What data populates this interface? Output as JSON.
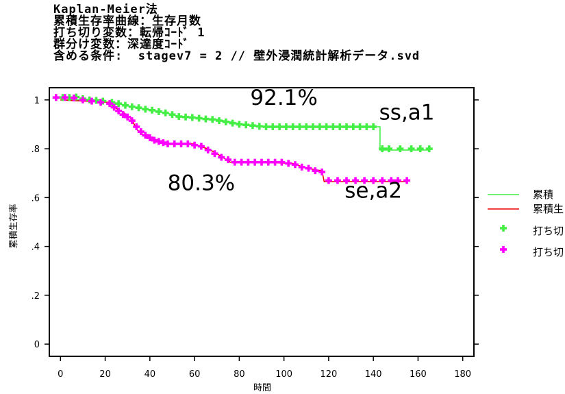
{
  "header": {
    "lines": [
      "Kaplan-Meier法",
      "累積生存率曲線：生存月数",
      "打ち切り変数：転帰ｺｰﾄﾞ 1",
      "群分け変数：深達度ｺｰﾄﾞ",
      "含める条件:  stagev7 = 2 // 壁外浸潤統計解析データ.svd"
    ]
  },
  "chart_data": {
    "type": "line",
    "xlabel": "時間",
    "ylabel": "累積生存率",
    "xlim": [
      -5,
      185
    ],
    "ylim": [
      -0.05,
      1.05
    ],
    "xticks": [
      0,
      20,
      40,
      60,
      80,
      100,
      120,
      140,
      160,
      180
    ],
    "yticks": [
      0,
      0.2,
      0.4,
      0.6,
      0.8,
      1
    ],
    "ytick_labels": [
      "0",
      ".2",
      ".4",
      ".6",
      ".8",
      "1"
    ],
    "grid": false,
    "series": [
      {
        "name": "累積",
        "color": "#44ee44",
        "curve": [
          [
            0,
            1.0
          ],
          [
            8,
            1.0
          ],
          [
            14,
            0.995
          ],
          [
            22,
            0.99
          ],
          [
            26,
            0.985
          ],
          [
            30,
            0.975
          ],
          [
            36,
            0.965
          ],
          [
            42,
            0.955
          ],
          [
            48,
            0.945
          ],
          [
            52,
            0.935
          ],
          [
            54,
            0.93
          ],
          [
            62,
            0.925
          ],
          [
            70,
            0.92
          ],
          [
            76,
            0.91
          ],
          [
            82,
            0.9
          ],
          [
            86,
            0.895
          ],
          [
            92,
            0.89
          ],
          [
            143,
            0.89
          ],
          [
            143,
            0.795
          ],
          [
            165,
            0.795
          ]
        ],
        "censored": [
          [
            -2,
            1.01
          ],
          [
            1,
            1.01
          ],
          [
            4,
            1.01
          ],
          [
            7,
            1.012
          ],
          [
            10,
            1.005
          ],
          [
            13,
            1.0
          ],
          [
            16,
            0.998
          ],
          [
            19,
            0.995
          ],
          [
            23,
            0.99
          ],
          [
            26,
            0.985
          ],
          [
            29,
            0.978
          ],
          [
            32,
            0.972
          ],
          [
            35,
            0.968
          ],
          [
            38,
            0.962
          ],
          [
            41,
            0.958
          ],
          [
            44,
            0.952
          ],
          [
            47,
            0.947
          ],
          [
            50,
            0.94
          ],
          [
            53,
            0.932
          ],
          [
            56,
            0.93
          ],
          [
            59,
            0.928
          ],
          [
            62,
            0.925
          ],
          [
            65,
            0.922
          ],
          [
            68,
            0.92
          ],
          [
            71,
            0.915
          ],
          [
            74,
            0.91
          ],
          [
            77,
            0.905
          ],
          [
            80,
            0.9
          ],
          [
            83,
            0.898
          ],
          [
            86,
            0.895
          ],
          [
            89,
            0.892
          ],
          [
            92,
            0.89
          ],
          [
            95,
            0.89
          ],
          [
            98,
            0.89
          ],
          [
            101,
            0.89
          ],
          [
            104,
            0.89
          ],
          [
            107,
            0.89
          ],
          [
            110,
            0.89
          ],
          [
            113,
            0.89
          ],
          [
            116,
            0.89
          ],
          [
            119,
            0.89
          ],
          [
            122,
            0.89
          ],
          [
            125,
            0.89
          ],
          [
            128,
            0.89
          ],
          [
            131,
            0.89
          ],
          [
            134,
            0.89
          ],
          [
            137,
            0.89
          ],
          [
            140,
            0.89
          ],
          [
            144,
            0.8
          ],
          [
            147,
            0.8
          ],
          [
            152,
            0.8
          ],
          [
            157,
            0.8
          ],
          [
            161,
            0.8
          ],
          [
            165,
            0.8
          ]
        ]
      },
      {
        "name": "累積生",
        "color": "#ee0000",
        "curve": [
          [
            0,
            1.0
          ],
          [
            22,
            0.99
          ],
          [
            24,
            0.97
          ],
          [
            28,
            0.95
          ],
          [
            32,
            0.92
          ],
          [
            34,
            0.88
          ],
          [
            38,
            0.85
          ],
          [
            42,
            0.84
          ],
          [
            46,
            0.82
          ],
          [
            60,
            0.82
          ],
          [
            62,
            0.81
          ],
          [
            66,
            0.8
          ],
          [
            70,
            0.78
          ],
          [
            76,
            0.745
          ],
          [
            88,
            0.745
          ],
          [
            104,
            0.74
          ],
          [
            110,
            0.72
          ],
          [
            117,
            0.71
          ],
          [
            118,
            0.665
          ],
          [
            155,
            0.665
          ]
        ],
        "censored": [
          [
            -2,
            1.01
          ],
          [
            2,
            1.01
          ],
          [
            6,
            1.008
          ],
          [
            10,
            1.0
          ],
          [
            14,
            0.995
          ],
          [
            18,
            0.99
          ],
          [
            22,
            0.985
          ],
          [
            24,
            0.97
          ],
          [
            26,
            0.955
          ],
          [
            28,
            0.94
          ],
          [
            30,
            0.93
          ],
          [
            32,
            0.915
          ],
          [
            34,
            0.89
          ],
          [
            36,
            0.87
          ],
          [
            38,
            0.855
          ],
          [
            40,
            0.845
          ],
          [
            42,
            0.835
          ],
          [
            44,
            0.83
          ],
          [
            46,
            0.825
          ],
          [
            48,
            0.82
          ],
          [
            51,
            0.82
          ],
          [
            54,
            0.82
          ],
          [
            57,
            0.82
          ],
          [
            60,
            0.815
          ],
          [
            63,
            0.81
          ],
          [
            66,
            0.795
          ],
          [
            69,
            0.78
          ],
          [
            72,
            0.765
          ],
          [
            75,
            0.755
          ],
          [
            78,
            0.745
          ],
          [
            81,
            0.745
          ],
          [
            84,
            0.745
          ],
          [
            87,
            0.745
          ],
          [
            90,
            0.745
          ],
          [
            93,
            0.745
          ],
          [
            96,
            0.745
          ],
          [
            99,
            0.745
          ],
          [
            102,
            0.74
          ],
          [
            105,
            0.735
          ],
          [
            108,
            0.725
          ],
          [
            111,
            0.72
          ],
          [
            114,
            0.71
          ],
          [
            117,
            0.705
          ],
          [
            120,
            0.67
          ],
          [
            124,
            0.67
          ],
          [
            128,
            0.67
          ],
          [
            132,
            0.67
          ],
          [
            136,
            0.67
          ],
          [
            140,
            0.67
          ],
          [
            144,
            0.67
          ],
          [
            148,
            0.67
          ],
          [
            151,
            0.67
          ],
          [
            155,
            0.67
          ]
        ]
      }
    ],
    "censor_marker_colors": [
      "#44ee44",
      "#ff00ff"
    ],
    "legend": {
      "position": "right",
      "items": [
        {
          "label": "累積",
          "kind": "line",
          "color": "#44ee44"
        },
        {
          "label": "累積生",
          "kind": "line",
          "color": "#ee0000"
        },
        {
          "label": "打ち切",
          "kind": "marker",
          "color": "#44ee44"
        },
        {
          "label": "打ち切",
          "kind": "marker",
          "color": "#ff00ff"
        }
      ]
    },
    "annotations": [
      {
        "text": "92.1%",
        "x": 100,
        "y": 0.98
      },
      {
        "text": "ss,a1",
        "x": 155,
        "y": 0.92
      },
      {
        "text": "80.3%",
        "x": 63,
        "y": 0.63
      },
      {
        "text": "se,a2",
        "x": 140,
        "y": 0.6
      }
    ]
  }
}
